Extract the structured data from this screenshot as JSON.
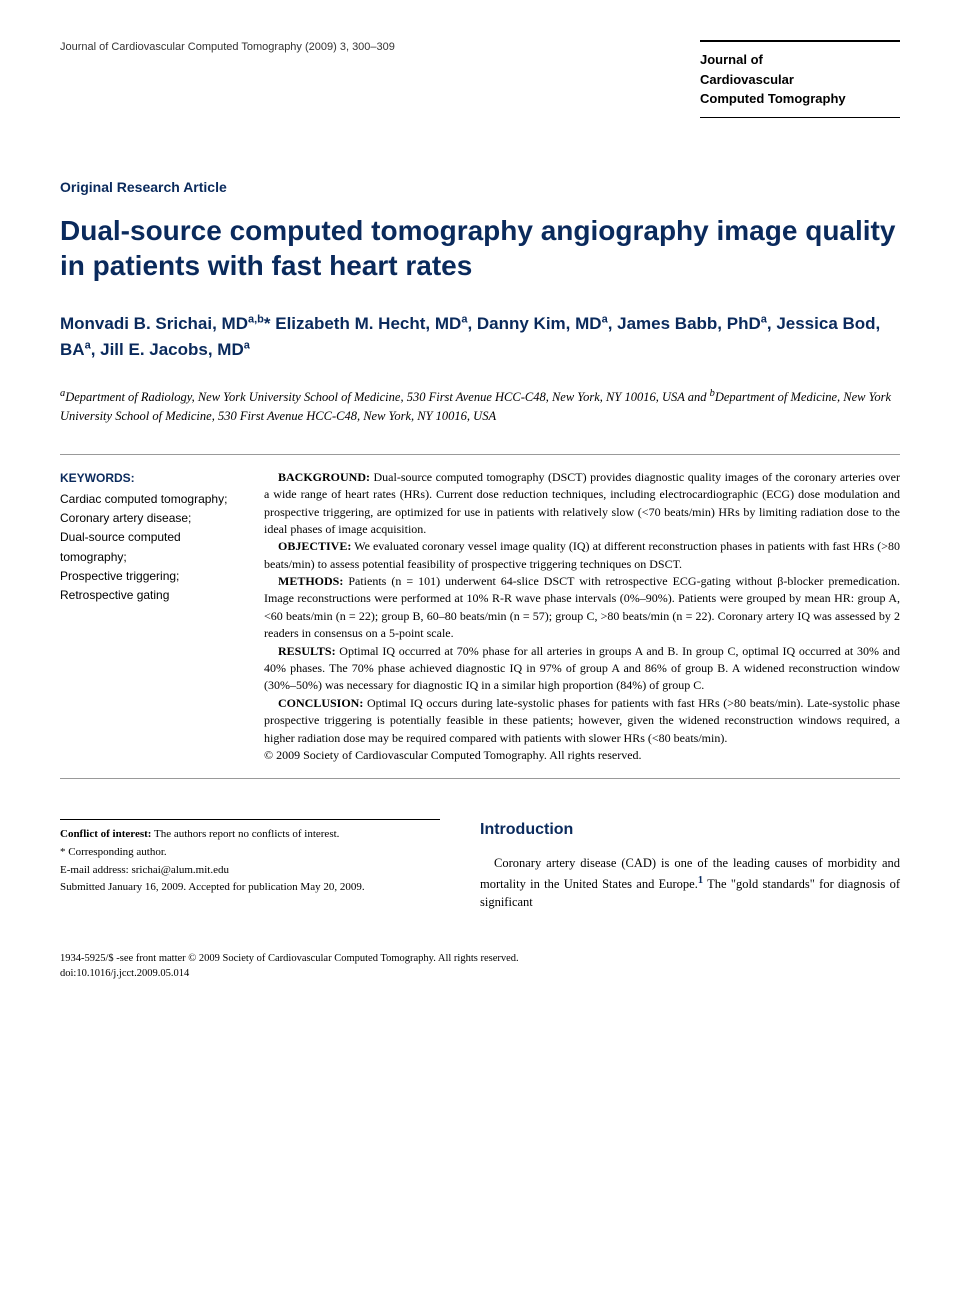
{
  "header": {
    "journal_ref": "Journal of Cardiovascular Computed Tomography (2009) 3, 300–309",
    "journal_box_line1": "Journal of",
    "journal_box_line2": "Cardiovascular",
    "journal_box_line3": "Computed Tomography"
  },
  "article": {
    "type": "Original Research Article",
    "title": "Dual-source computed tomography angiography image quality in patients with fast heart rates",
    "authors_html": "Monvadi B. Srichai, MD<sup>a,b</sup>* Elizabeth M. Hecht, MD<sup>a</sup>, Danny Kim, MD<sup>a</sup>, James Babb, PhD<sup>a</sup>, Jessica Bod, BA<sup>a</sup>, Jill E. Jacobs, MD<sup>a</sup>",
    "affiliations_html": "<sup>a</sup>Department of Radiology, New York University School of Medicine, 530 First Avenue HCC-C48, New York, NY 10016, USA and <sup>b</sup>Department of Medicine, New York University School of Medicine, 530 First Avenue HCC-C48, New York, NY 10016, USA"
  },
  "keywords": {
    "heading": "KEYWORDS:",
    "items": [
      "Cardiac computed tomography;",
      "Coronary artery disease;",
      "Dual-source computed tomography;",
      "Prospective triggering;",
      "Retrospective gating"
    ]
  },
  "abstract": {
    "background": {
      "label": "BACKGROUND:",
      "text": " Dual-source computed tomography (DSCT) provides diagnostic quality images of the coronary arteries over a wide range of heart rates (HRs). Current dose reduction techniques, including electrocardiographic (ECG) dose modulation and prospective triggering, are optimized for use in patients with relatively slow (<70 beats/min) HRs by limiting radiation dose to the ideal phases of image acquisition."
    },
    "objective": {
      "label": "OBJECTIVE:",
      "text": " We evaluated coronary vessel image quality (IQ) at different reconstruction phases in patients with fast HRs (>80 beats/min) to assess potential feasibility of prospective triggering techniques on DSCT."
    },
    "methods": {
      "label": "METHODS:",
      "text": " Patients (n = 101) underwent 64-slice DSCT with retrospective ECG-gating without β-blocker premedication. Image reconstructions were performed at 10% R-R wave phase intervals (0%–90%). Patients were grouped by mean HR: group A, <60 beats/min (n = 22); group B, 60–80 beats/min (n = 57); group C, >80 beats/min (n = 22). Coronary artery IQ was assessed by 2 readers in consensus on a 5-point scale."
    },
    "results": {
      "label": "RESULTS:",
      "text": " Optimal IQ occurred at 70% phase for all arteries in groups A and B. In group C, optimal IQ occurred at 30% and 40% phases. The 70% phase achieved diagnostic IQ in 97% of group A and 86% of group B. A widened reconstruction window (30%–50%) was necessary for diagnostic IQ in a similar high proportion (84%) of group C."
    },
    "conclusion": {
      "label": "CONCLUSION:",
      "text": " Optimal IQ occurs during late-systolic phases for patients with fast HRs (>80 beats/min). Late-systolic phase prospective triggering is potentially feasible in these patients; however, given the widened reconstruction windows required, a higher radiation dose may be required compared with patients with slower HRs (<80 beats/min)."
    },
    "copyright": "© 2009 Society of Cardiovascular Computed Tomography. All rights reserved."
  },
  "footnotes": {
    "conflict_label": "Conflict of interest:",
    "conflict_text": " The authors report no conflicts of interest.",
    "corresponding": "* Corresponding author.",
    "email_label": "E-mail address: ",
    "email": "srichai@alum.mit.edu",
    "submitted": "Submitted January 16, 2009. Accepted for publication May 20, 2009."
  },
  "intro": {
    "heading": "Introduction",
    "text_html": "Coronary artery disease (CAD) is one of the leading causes of morbidity and mortality in the United States and Europe.<sup>1</sup> The \"gold standards\" for diagnosis of significant"
  },
  "footer": {
    "line1": "1934-5925/$ -see front matter © 2009 Society of Cardiovascular Computed Tomography. All rights reserved.",
    "line2": "doi:10.1016/j.jcct.2009.05.014"
  },
  "colors": {
    "heading_blue": "#0a2a5c",
    "text_black": "#000000",
    "rule_gray": "#999999"
  }
}
